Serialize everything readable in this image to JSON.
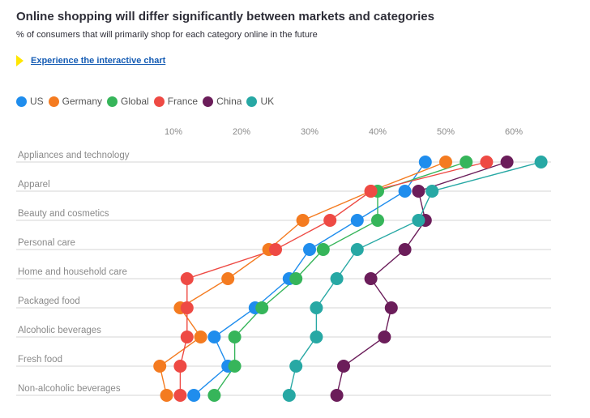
{
  "title": "Online shopping will differ significantly between markets and categories",
  "subtitle": "% of consumers that will primarily shop for each category online in the future",
  "link_text": "Experience the interactive chart",
  "chart_data": {
    "type": "scatter",
    "title": "Online shopping will differ significantly between markets and categories",
    "subtitle": "% of consumers that will primarily shop for each category online in the future",
    "categories": [
      "Appliances and technology",
      "Apparel",
      "Beauty and cosmetics",
      "Personal care",
      "Home and household care",
      "Packaged food",
      "Alcoholic beverages",
      "Fresh food",
      "Non-alcoholic beverages"
    ],
    "x_ticks": [
      "10%",
      "20%",
      "30%",
      "40%",
      "50%",
      "60%"
    ],
    "x_tick_values": [
      10,
      20,
      30,
      40,
      50,
      60
    ],
    "xlim": [
      5,
      65
    ],
    "grid": false,
    "legend_position": "top-left",
    "series": [
      {
        "name": "US",
        "color": "#1f8ded",
        "values": [
          47,
          44,
          37,
          30,
          27,
          22,
          16,
          18,
          13
        ]
      },
      {
        "name": "Germany",
        "color": "#f47b20",
        "values": [
          50,
          39,
          29,
          24,
          18,
          11,
          14,
          8,
          9
        ]
      },
      {
        "name": "Global",
        "color": "#36b55a",
        "values": [
          53,
          40,
          40,
          32,
          28,
          23,
          19,
          19,
          16
        ]
      },
      {
        "name": "France",
        "color": "#ee4a44",
        "values": [
          56,
          39,
          33,
          25,
          12,
          12,
          12,
          11,
          11
        ]
      },
      {
        "name": "China",
        "color": "#6b1d5a",
        "values": [
          59,
          46,
          47,
          44,
          39,
          42,
          41,
          35,
          34
        ]
      },
      {
        "name": "UK",
        "color": "#27a8a4",
        "values": [
          64,
          48,
          46,
          37,
          34,
          31,
          31,
          28,
          27
        ]
      }
    ]
  }
}
